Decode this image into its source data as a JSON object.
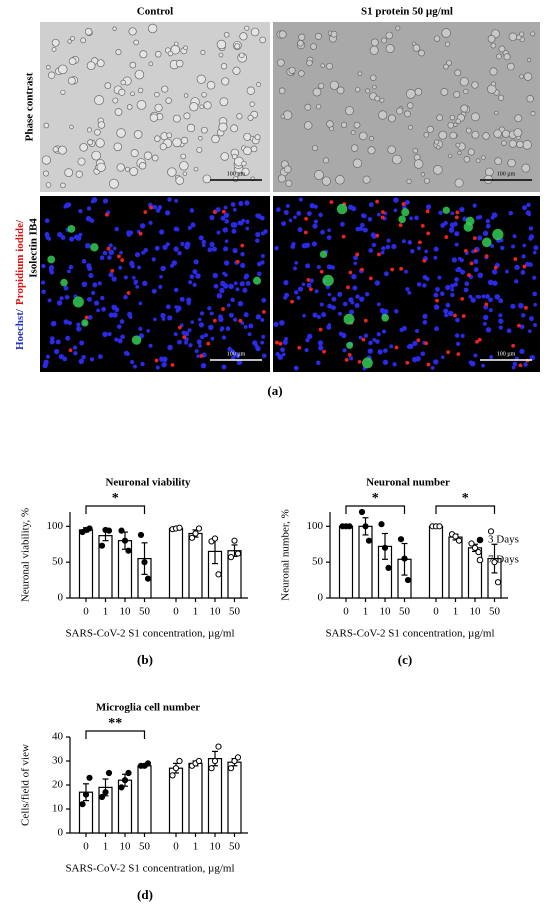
{
  "figure_a": {
    "columns": [
      "Control",
      "S1 protein 50 µg/ml"
    ],
    "rows": {
      "phase": "Phase contrast",
      "fluor": [
        "Hoechst/",
        "Propidium  iodide/",
        "Isolectin IB4"
      ]
    },
    "scale_bar": "100 µm",
    "label": "(a)"
  },
  "chart_data": [
    {
      "type": "bar",
      "title": "Neuronal viability",
      "ylabel": "Neuronal viability, %",
      "xlabel": "SARS-CoV-2 S1 concentration, µg/ml",
      "panel": "(b)",
      "categories": [
        "0",
        "1",
        "10",
        "50"
      ],
      "ylim": [
        0,
        120
      ],
      "yticks": [
        0,
        50,
        100
      ],
      "legend": false,
      "series": [
        {
          "name": "3 Days",
          "marker_fill": "#000000",
          "values": [
            95,
            87,
            80,
            55
          ],
          "errors": [
            3,
            7,
            12,
            22
          ],
          "points": [
            [
              92,
              95,
              97
            ],
            [
              73,
              95,
              94
            ],
            [
              94,
              80,
              66
            ],
            [
              88,
              50,
              27
            ]
          ],
          "bracket": "*"
        },
        {
          "name": "7 Days",
          "marker_fill": "#ffffff",
          "values": [
            97,
            90,
            65,
            66
          ],
          "errors": [
            2,
            5,
            17,
            8
          ],
          "points": [
            [
              96,
              97,
              98
            ],
            [
              84,
              90,
              97
            ],
            [
              79,
              83,
              33
            ],
            [
              57,
              80,
              62
            ]
          ]
        }
      ]
    },
    {
      "type": "bar",
      "title": "Neuronal  number",
      "ylabel": "Neuronal number, %",
      "xlabel": "SARS-CoV-2 S1 concentration, µg/ml",
      "panel": "(c)",
      "categories": [
        "0",
        "1",
        "10",
        "50"
      ],
      "ylim": [
        0,
        120
      ],
      "yticks": [
        0,
        50,
        100
      ],
      "legend": true,
      "series": [
        {
          "name": "3 Days",
          "marker_fill": "#000000",
          "values": [
            100,
            100,
            72,
            54
          ],
          "errors": [
            0,
            12,
            18,
            22
          ],
          "points": [
            [
              100,
              100,
              100
            ],
            [
              120,
              100,
              80
            ],
            [
              103,
              70,
              42
            ],
            [
              82,
              55,
              25
            ]
          ],
          "bracket": "*"
        },
        {
          "name": "7 Days",
          "marker_fill": "#ffffff",
          "values": [
            100,
            85,
            70,
            55
          ],
          "errors": [
            0,
            4,
            5,
            20
          ],
          "points": [
            [
              100,
              100,
              100
            ],
            [
              89,
              86,
              80
            ],
            [
              76,
              70,
              64
            ],
            [
              93,
              50,
              22
            ]
          ],
          "bracket": "*"
        }
      ]
    },
    {
      "type": "bar",
      "title": "Microglia cell  number",
      "ylabel": "Cells/field of view",
      "xlabel": "SARS-CoV-2 S1 concentration, µg/ml",
      "panel": "(d)",
      "categories": [
        "0",
        "1",
        "10",
        "50"
      ],
      "ylim": [
        0,
        40
      ],
      "yticks": [
        0,
        10,
        20,
        30,
        40
      ],
      "legend": false,
      "series": [
        {
          "name": "3 Days",
          "marker_fill": "#000000",
          "values": [
            17,
            19,
            22,
            28
          ],
          "errors": [
            3.5,
            3.5,
            2.5,
            0.5
          ],
          "points": [
            [
              12,
              16,
              23
            ],
            [
              15,
              17,
              25
            ],
            [
              19,
              22,
              25
            ],
            [
              28,
              28,
              29
            ]
          ],
          "bracket": "**"
        },
        {
          "name": "7 Days",
          "marker_fill": "#ffffff",
          "values": [
            27,
            29,
            31,
            29.5
          ],
          "errors": [
            2,
            1,
            3,
            1.5
          ],
          "points": [
            [
              24,
              27,
              30
            ],
            [
              28,
              29,
              30
            ],
            [
              27,
              30,
              36
            ],
            [
              27,
              30,
              31.5
            ]
          ]
        }
      ]
    }
  ]
}
